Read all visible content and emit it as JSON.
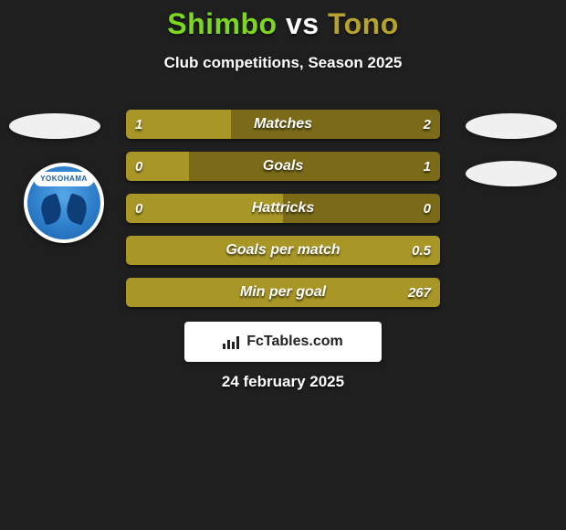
{
  "title": {
    "p1": "Shimbo",
    "vs": "vs",
    "p2": "Tono",
    "p1_color": "#7dd61f",
    "p2_color": "#b6a22e"
  },
  "subtitle": "Club competitions, Season 2025",
  "colors": {
    "left": "#a89627",
    "right": "#7b6b18",
    "single_right": "#a89627"
  },
  "crest_text": "YOKOHAMA",
  "bars": [
    {
      "label": "Matches",
      "vl": "1",
      "vr": "2",
      "pctL": 33.3
    },
    {
      "label": "Goals",
      "vl": "0",
      "vr": "1",
      "pctL": 20
    },
    {
      "label": "Hattricks",
      "vl": "0",
      "vr": "0",
      "pctL": 50
    },
    {
      "label": "Goals per match",
      "vl": "",
      "vr": "0.5",
      "pctL": 0
    },
    {
      "label": "Min per goal",
      "vl": "",
      "vr": "267",
      "pctL": 0
    }
  ],
  "brand": "FcTables.com",
  "date": "24 february 2025"
}
